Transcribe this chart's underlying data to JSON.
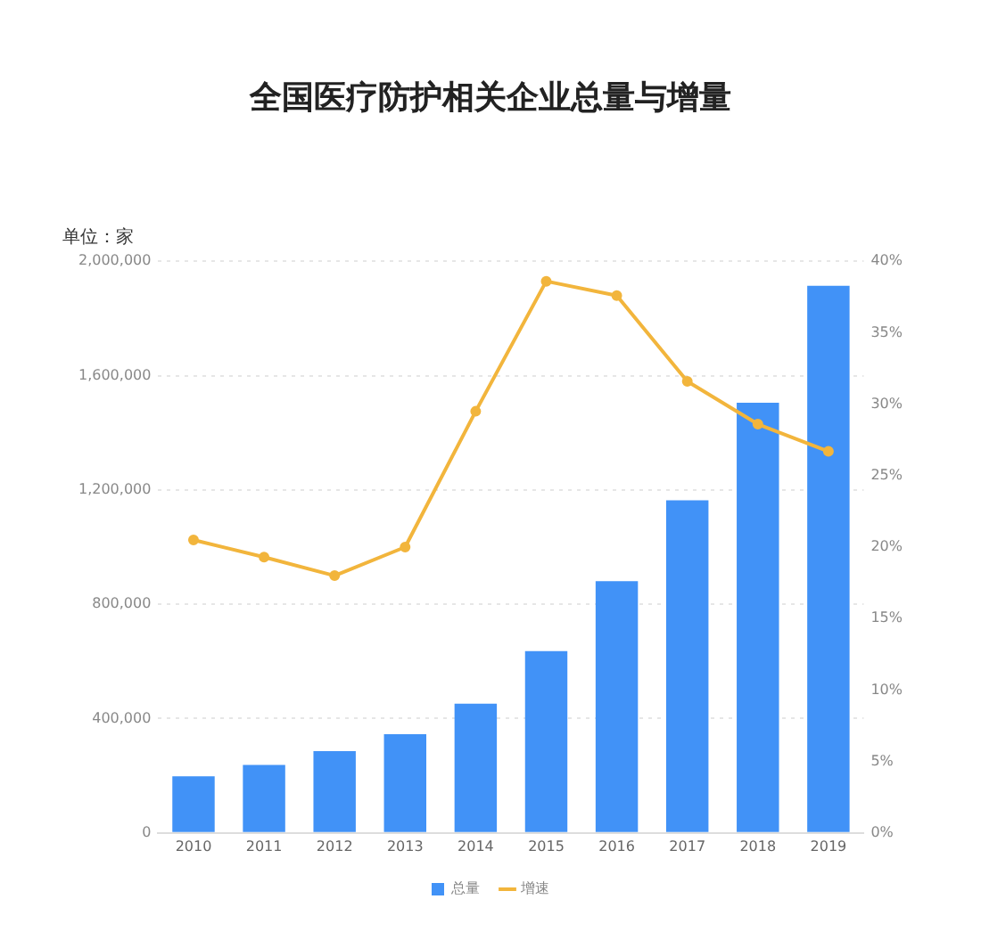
{
  "chart_data": {
    "type": "bar",
    "title": "全国医疗防护相关企业总量与增量",
    "ylabel": "单位：家",
    "categories": [
      "2010",
      "2011",
      "2012",
      "2013",
      "2014",
      "2015",
      "2016",
      "2017",
      "2018",
      "2019"
    ],
    "series": [
      {
        "name": "总量",
        "color": "#4192f7",
        "values": [
          198000,
          238000,
          286000,
          345000,
          452000,
          636000,
          881000,
          1164000,
          1505000,
          1914000
        ]
      },
      {
        "name": "增速",
        "type": "line",
        "axis": "y2",
        "color": "#f2b53c",
        "values": [
          20.5,
          19.3,
          18.0,
          20.0,
          29.5,
          38.6,
          37.6,
          31.6,
          28.6,
          26.7
        ]
      }
    ],
    "ylim": [
      0,
      2000000
    ],
    "yticks": [
      {
        "value": 0,
        "label": "0"
      },
      {
        "value": 400000,
        "label": "400,000"
      },
      {
        "value": 800000,
        "label": "800,000"
      },
      {
        "value": 1200000,
        "label": "1,200,000"
      },
      {
        "value": 1600000,
        "label": "1,600,000"
      },
      {
        "value": 2000000,
        "label": "2,000,000"
      }
    ],
    "y2lim": [
      0,
      40
    ],
    "y2ticks": [
      {
        "value": 0,
        "label": "0%"
      },
      {
        "value": 5,
        "label": "5%"
      },
      {
        "value": 10,
        "label": "10%"
      },
      {
        "value": 15,
        "label": "15%"
      },
      {
        "value": 20,
        "label": "20%"
      },
      {
        "value": 25,
        "label": "25%"
      },
      {
        "value": 30,
        "label": "30%"
      },
      {
        "value": 35,
        "label": "35%"
      },
      {
        "value": 40,
        "label": "40%"
      }
    ],
    "grid": "y",
    "legend": "bottom",
    "marker": "circle",
    "line_style": "solid"
  }
}
